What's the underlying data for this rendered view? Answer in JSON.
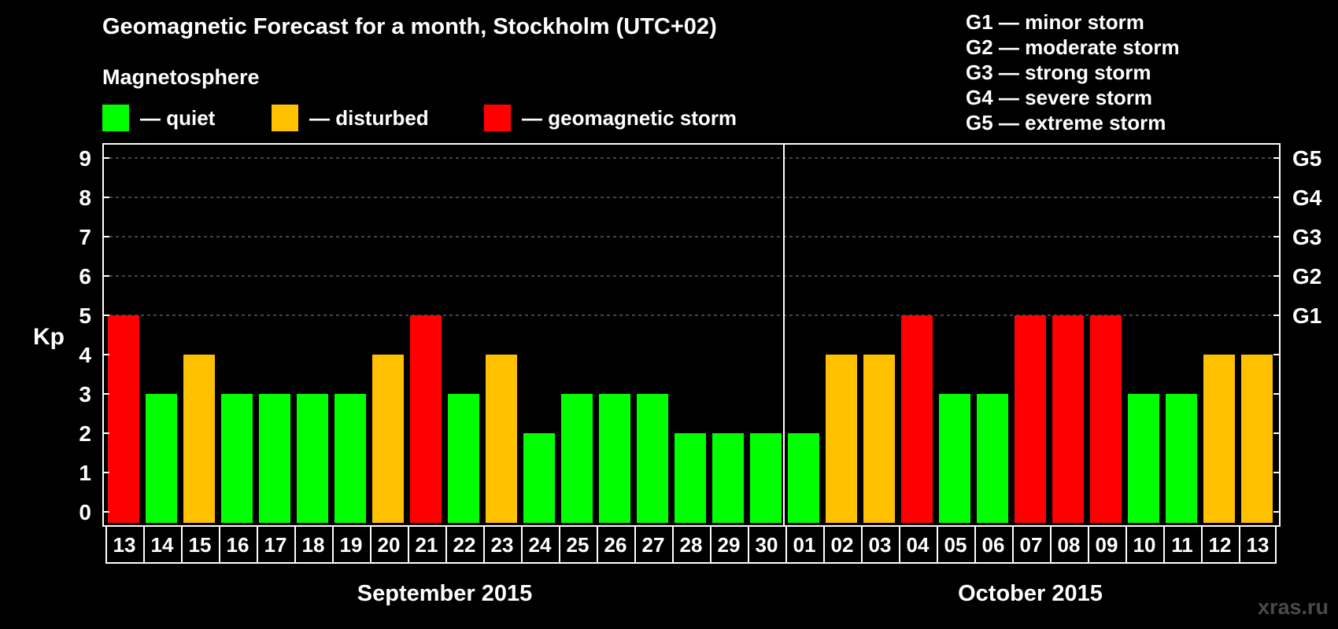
{
  "title": "Geomagnetic Forecast for a month, Stockholm (UTC+02)",
  "subtitle": "Magnetosphere",
  "legend": [
    {
      "label": "— quiet",
      "color": "#00ff00"
    },
    {
      "label": "— disturbed",
      "color": "#ffc000"
    },
    {
      "label": "— geomagnetic storm",
      "color": "#ff0000"
    }
  ],
  "storm_levels": [
    "G1 — minor storm",
    "G2 — moderate storm",
    "G3 — strong storm",
    "G4 — severe storm",
    "G5 — extreme storm"
  ],
  "watermark": "xras.ru",
  "colors": {
    "quiet": "#00ff00",
    "disturbed": "#ffc000",
    "storm": "#ff0000",
    "background": "#000000"
  },
  "chart_data": {
    "type": "bar",
    "categories": [
      "13",
      "14",
      "15",
      "16",
      "17",
      "18",
      "19",
      "20",
      "21",
      "22",
      "23",
      "24",
      "25",
      "26",
      "27",
      "28",
      "29",
      "30",
      "01",
      "02",
      "03",
      "04",
      "05",
      "06",
      "07",
      "08",
      "09",
      "10",
      "11",
      "12",
      "13"
    ],
    "values": [
      5,
      3,
      4,
      3,
      3,
      3,
      3,
      4,
      5,
      3,
      4,
      2,
      3,
      3,
      3,
      2,
      2,
      2,
      2,
      4,
      4,
      5,
      3,
      3,
      5,
      5,
      5,
      3,
      3,
      4,
      4
    ],
    "status": [
      "storm",
      "quiet",
      "disturbed",
      "quiet",
      "quiet",
      "quiet",
      "quiet",
      "disturbed",
      "storm",
      "quiet",
      "disturbed",
      "quiet",
      "quiet",
      "quiet",
      "quiet",
      "quiet",
      "quiet",
      "quiet",
      "quiet",
      "disturbed",
      "disturbed",
      "storm",
      "quiet",
      "quiet",
      "storm",
      "storm",
      "storm",
      "quiet",
      "quiet",
      "disturbed",
      "disturbed"
    ],
    "ylabel": "Kp",
    "ylim": [
      0,
      9
    ],
    "yticks": [
      "0",
      "1",
      "2",
      "3",
      "4",
      "5",
      "6",
      "7",
      "8",
      "9"
    ],
    "right_ticks": [
      {
        "value": 5,
        "label": "G1"
      },
      {
        "value": 6,
        "label": "G2"
      },
      {
        "value": 7,
        "label": "G3"
      },
      {
        "value": 8,
        "label": "G4"
      },
      {
        "value": 9,
        "label": "G5"
      }
    ],
    "gridlines": [
      5,
      6,
      7,
      8,
      9
    ],
    "months": [
      {
        "label": "September 2015",
        "start": 0,
        "end": 17
      },
      {
        "label": "October 2015",
        "start": 18,
        "end": 30
      }
    ]
  }
}
